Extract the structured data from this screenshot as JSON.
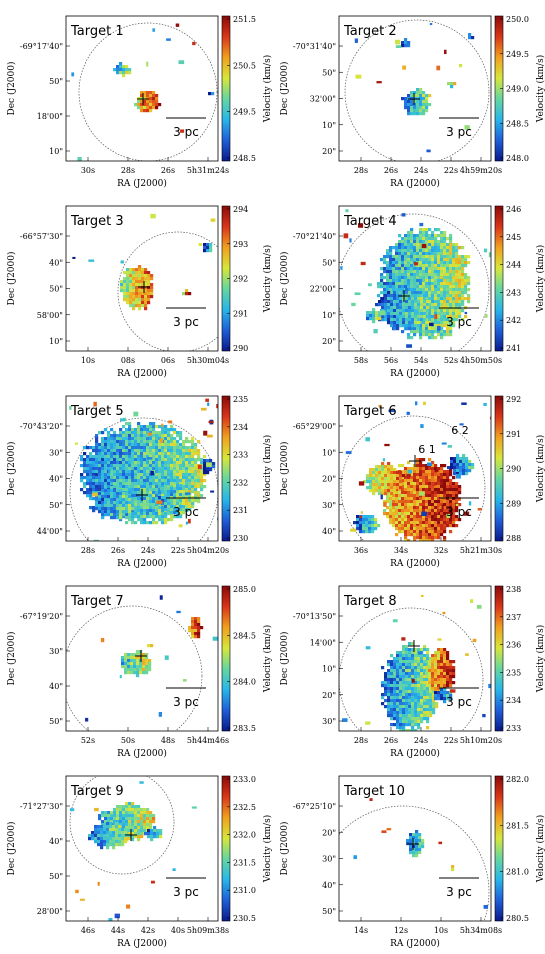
{
  "figure": {
    "colormap": [
      "#0a1a8a",
      "#1f5fd8",
      "#29b6e8",
      "#66d6a0",
      "#d7e63a",
      "#f0a020",
      "#d8361a",
      "#8a0a0a"
    ],
    "panels": [
      {
        "target": "Target 1",
        "ylabel": "Dec (J2000)",
        "xlabel": "RA (J2000)",
        "cblabel": "Velocity (km/s)",
        "yticks": [
          "-69°17'40\"",
          "50\"",
          "18'00\"",
          "10\""
        ],
        "xticks": [
          "30s",
          "28s",
          "26s",
          "5h31m24s"
        ],
        "cbticks": [
          "251.5",
          "250.5",
          "249.5",
          "248.5"
        ],
        "cb_top": "251.5",
        "cb_bottom": "248.5",
        "scalebar": "3 pc",
        "annotations": []
      },
      {
        "target": "Target 2",
        "ylabel": "Dec (J2000)",
        "xlabel": "RA (J2000)",
        "cblabel": "Velocity (km/s)",
        "yticks": [
          "-70°31'40\"",
          "50\"",
          "32'00\"",
          "10\"",
          "20\""
        ],
        "xticks": [
          "28s",
          "26s",
          "24s",
          "22s",
          "4h59m20s"
        ],
        "cbticks": [
          "250.0",
          "249.5",
          "249.0",
          "248.5",
          "248.0"
        ],
        "cb_top": "250.0",
        "cb_bottom": "248.0",
        "scalebar": "3 pc",
        "annotations": []
      },
      {
        "target": "Target 3",
        "ylabel": "Dec (J2000)",
        "xlabel": "RA (J2000)",
        "cblabel": "Velocity (km/s)",
        "yticks": [
          "-66°57'30\"",
          "40\"",
          "50\"",
          "58'00\"",
          "10\""
        ],
        "xticks": [
          "10s",
          "08s",
          "06s",
          "5h30m04s"
        ],
        "cbticks": [
          "294",
          "293",
          "292",
          "291",
          "290"
        ],
        "cb_top": "294",
        "cb_bottom": "290",
        "scalebar": "3 pc",
        "annotations": []
      },
      {
        "target": "Target 4",
        "ylabel": "Dec (J2000)",
        "xlabel": "RA (J2000)",
        "cblabel": "Velocity (km/s)",
        "yticks": [
          "-70°21'40\"",
          "50\"",
          "22'00\"",
          "10\"",
          "20\""
        ],
        "xticks": [
          "58s",
          "56s",
          "54s",
          "52s",
          "4h50m50s"
        ],
        "cbticks": [
          "246",
          "245",
          "244",
          "243",
          "242",
          "241"
        ],
        "cb_top": "246",
        "cb_bottom": "241",
        "scalebar": "3 pc",
        "annotations": []
      },
      {
        "target": "Target 5",
        "ylabel": "Dec (J2000)",
        "xlabel": "RA (J2000)",
        "cblabel": "Velocity (km/s)",
        "yticks": [
          "-70°43'20\"",
          "30\"",
          "40\"",
          "50\"",
          "44'00\""
        ],
        "xticks": [
          "28s",
          "26s",
          "24s",
          "22s",
          "5h04m20s"
        ],
        "cbticks": [
          "235",
          "234",
          "233",
          "232",
          "231",
          "230"
        ],
        "cb_top": "235",
        "cb_bottom": "230",
        "scalebar": "3 pc",
        "annotations": []
      },
      {
        "target": "Target 6",
        "ylabel": "Dec (J2000)",
        "xlabel": "RA (J2000)",
        "cblabel": "Velocity (km/s)",
        "yticks": [
          "-65°29'00\"",
          "10\"",
          "20\"",
          "30\"",
          "40\""
        ],
        "xticks": [
          "36s",
          "34s",
          "32s",
          "5h21m30s"
        ],
        "cbticks": [
          "292",
          "291",
          "290",
          "289",
          "288"
        ],
        "cb_top": "292",
        "cb_bottom": "288",
        "scalebar": "3 pc",
        "annotations": [
          "6_1",
          "6_2"
        ]
      },
      {
        "target": "Target 7",
        "ylabel": "Dec (J2000)",
        "xlabel": "RA (J2000)",
        "cblabel": "Velocity (km/s)",
        "yticks": [
          "-67°19'20\"",
          "30\"",
          "40\"",
          "50\""
        ],
        "xticks": [
          "52s",
          "50s",
          "48s",
          "5h44m46s"
        ],
        "cbticks": [
          "285.0",
          "284.5",
          "284.0",
          "283.5"
        ],
        "cb_top": "285.0",
        "cb_bottom": "283.5",
        "scalebar": "3 pc",
        "annotations": []
      },
      {
        "target": "Target 8",
        "ylabel": "Dec (J2000)",
        "xlabel": "RA (J2000)",
        "cblabel": "Velocity (km/s)",
        "yticks": [
          "-70°13'50\"",
          "14'00\"",
          "10\"",
          "20\"",
          "30\""
        ],
        "xticks": [
          "28s",
          "26s",
          "24s",
          "22s",
          "5h10m20s"
        ],
        "cbticks": [
          "238",
          "237",
          "236",
          "235",
          "234",
          "233"
        ],
        "cb_top": "238",
        "cb_bottom": "233",
        "scalebar": "3 pc",
        "annotations": []
      },
      {
        "target": "Target 9",
        "ylabel": "Dec (J2000)",
        "xlabel": "RA (J2000)",
        "cblabel": "Velocity (km/s)",
        "yticks": [
          "-71°27'30\"",
          "40\"",
          "50\"",
          "28'00\""
        ],
        "xticks": [
          "46s",
          "44s",
          "42s",
          "40s",
          "5h09m38s"
        ],
        "cbticks": [
          "233.0",
          "232.5",
          "232.0",
          "231.5",
          "231.0",
          "230.5"
        ],
        "cb_top": "233.0",
        "cb_bottom": "230.5",
        "scalebar": "3 pc",
        "annotations": []
      },
      {
        "target": "Target 10",
        "ylabel": "Dec (J2000)",
        "xlabel": "RA (J2000)",
        "cblabel": "Velocity (km/s)",
        "yticks": [
          "-67°25'10\"",
          "20\"",
          "30\"",
          "40\"",
          "50\""
        ],
        "xticks": [
          "14s",
          "12s",
          "10s",
          "5h34m08s"
        ],
        "cbticks": [
          "282.0",
          "281.5",
          "281.0",
          "280.5"
        ],
        "cb_top": "282.0",
        "cb_bottom": "280.5",
        "scalebar": "3 pc",
        "annotations": []
      }
    ]
  },
  "chart_data": [
    {
      "type": "heatmap",
      "title": "Target 1",
      "xlabel": "RA (J2000)",
      "ylabel": "Dec (J2000)",
      "colorbar_label": "Velocity (km/s)",
      "colorbar_range": [
        248.5,
        251.5
      ],
      "x_ticks": [
        "30s",
        "28s",
        "26s",
        "5h31m24s"
      ],
      "y_ticks": [
        "-69°17'40\"",
        "50\"",
        "18'00\"",
        "10\""
      ],
      "scale_bar": "3 pc"
    },
    {
      "type": "heatmap",
      "title": "Target 2",
      "xlabel": "RA (J2000)",
      "ylabel": "Dec (J2000)",
      "colorbar_label": "Velocity (km/s)",
      "colorbar_range": [
        248.0,
        250.0
      ],
      "x_ticks": [
        "28s",
        "26s",
        "24s",
        "22s",
        "4h59m20s"
      ],
      "y_ticks": [
        "-70°31'40\"",
        "50\"",
        "32'00\"",
        "10\"",
        "20\""
      ],
      "scale_bar": "3 pc"
    },
    {
      "type": "heatmap",
      "title": "Target 3",
      "xlabel": "RA (J2000)",
      "ylabel": "Dec (J2000)",
      "colorbar_label": "Velocity (km/s)",
      "colorbar_range": [
        290,
        294
      ],
      "x_ticks": [
        "10s",
        "08s",
        "06s",
        "5h30m04s"
      ],
      "y_ticks": [
        "-66°57'30\"",
        "40\"",
        "50\"",
        "58'00\"",
        "10\""
      ],
      "scale_bar": "3 pc"
    },
    {
      "type": "heatmap",
      "title": "Target 4",
      "xlabel": "RA (J2000)",
      "ylabel": "Dec (J2000)",
      "colorbar_label": "Velocity (km/s)",
      "colorbar_range": [
        241,
        246
      ],
      "x_ticks": [
        "58s",
        "56s",
        "54s",
        "52s",
        "4h50m50s"
      ],
      "y_ticks": [
        "-70°21'40\"",
        "50\"",
        "22'00\"",
        "10\"",
        "20\""
      ],
      "scale_bar": "3 pc"
    },
    {
      "type": "heatmap",
      "title": "Target 5",
      "xlabel": "RA (J2000)",
      "ylabel": "Dec (J2000)",
      "colorbar_label": "Velocity (km/s)",
      "colorbar_range": [
        230,
        235
      ],
      "x_ticks": [
        "28s",
        "26s",
        "24s",
        "22s",
        "5h04m20s"
      ],
      "y_ticks": [
        "-70°43'20\"",
        "30\"",
        "40\"",
        "50\"",
        "44'00\""
      ],
      "scale_bar": "3 pc"
    },
    {
      "type": "heatmap",
      "title": "Target 6",
      "xlabel": "RA (J2000)",
      "ylabel": "Dec (J2000)",
      "colorbar_label": "Velocity (km/s)",
      "colorbar_range": [
        288,
        292
      ],
      "x_ticks": [
        "36s",
        "34s",
        "32s",
        "5h21m30s"
      ],
      "y_ticks": [
        "-65°29'00\"",
        "10\"",
        "20\"",
        "30\"",
        "40\""
      ],
      "scale_bar": "3 pc",
      "annotations": [
        "6_1",
        "6_2"
      ]
    },
    {
      "type": "heatmap",
      "title": "Target 7",
      "xlabel": "RA (J2000)",
      "ylabel": "Dec (J2000)",
      "colorbar_label": "Velocity (km/s)",
      "colorbar_range": [
        283.5,
        285.0
      ],
      "x_ticks": [
        "52s",
        "50s",
        "48s",
        "5h44m46s"
      ],
      "y_ticks": [
        "-67°19'20\"",
        "30\"",
        "40\"",
        "50\""
      ],
      "scale_bar": "3 pc"
    },
    {
      "type": "heatmap",
      "title": "Target 8",
      "xlabel": "RA (J2000)",
      "ylabel": "Dec (J2000)",
      "colorbar_label": "Velocity (km/s)",
      "colorbar_range": [
        233,
        238
      ],
      "x_ticks": [
        "28s",
        "26s",
        "24s",
        "22s",
        "5h10m20s"
      ],
      "y_ticks": [
        "-70°13'50\"",
        "14'00\"",
        "10\"",
        "20\"",
        "30\""
      ],
      "scale_bar": "3 pc"
    },
    {
      "type": "heatmap",
      "title": "Target 9",
      "xlabel": "RA (J2000)",
      "ylabel": "Dec (J2000)",
      "colorbar_label": "Velocity (km/s)",
      "colorbar_range": [
        230.5,
        233.0
      ],
      "x_ticks": [
        "46s",
        "44s",
        "42s",
        "40s",
        "5h09m38s"
      ],
      "y_ticks": [
        "-71°27'30\"",
        "40\"",
        "50\"",
        "28'00\""
      ],
      "scale_bar": "3 pc"
    },
    {
      "type": "heatmap",
      "title": "Target 10",
      "xlabel": "RA (J2000)",
      "ylabel": "Dec (J2000)",
      "colorbar_label": "Velocity (km/s)",
      "colorbar_range": [
        280.5,
        282.0
      ],
      "x_ticks": [
        "14s",
        "12s",
        "10s",
        "5h34m08s"
      ],
      "y_ticks": [
        "-67°25'10\"",
        "20\"",
        "30\"",
        "40\"",
        "50\""
      ],
      "scale_bar": "3 pc"
    }
  ]
}
